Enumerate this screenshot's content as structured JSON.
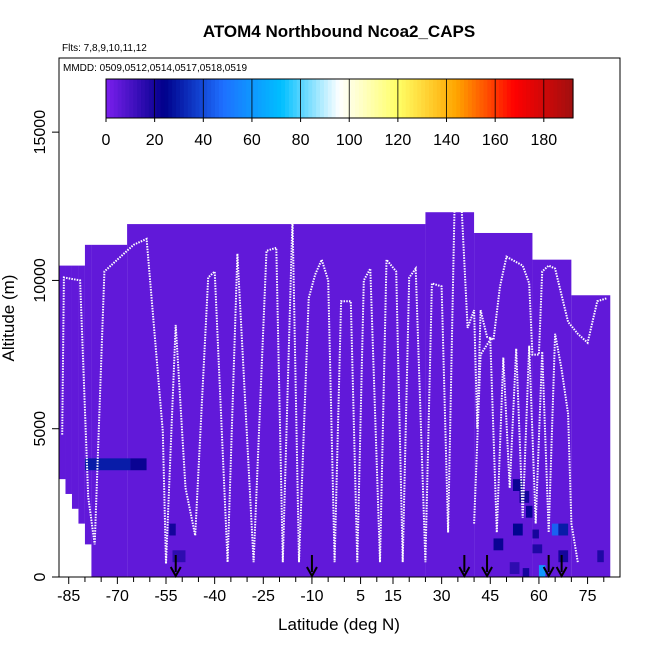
{
  "chart_data": {
    "type": "heatmap",
    "title": "ATOM4 Northbound Ncoa2_CAPS",
    "annotations": [
      "Flts: 7,8,9,10,11,12",
      "MMDD: 0509,0512,0514,0517,0518,0519"
    ],
    "xlabel": "Latitude (deg N)",
    "ylabel": "Altitude (m)",
    "xlim": [
      -88,
      85
    ],
    "ylim": [
      0,
      17500
    ],
    "x_ticks": [
      -85,
      -70,
      -55,
      -40,
      -25,
      -10,
      5,
      15,
      30,
      45,
      60,
      75
    ],
    "x_tick_labels": [
      "-85",
      "-70",
      "-55",
      "-40",
      "-25",
      "-10",
      "5",
      "15",
      "30",
      "45",
      "60",
      "75"
    ],
    "y_ticks": [
      0,
      5000,
      10000,
      15000
    ],
    "y_tick_labels": [
      "0",
      "5000",
      "10000",
      "15000"
    ],
    "colorbar": {
      "range": [
        0,
        192
      ],
      "ticks": [
        0,
        20,
        40,
        60,
        80,
        100,
        120,
        140,
        160,
        180
      ],
      "tick_labels": [
        "0",
        "20",
        "40",
        "60",
        "80",
        "100",
        "120",
        "140",
        "160",
        "180"
      ],
      "colors": [
        "#7b1fee",
        "#00008b",
        "#1e6fff",
        "#00bfff",
        "#ffffff",
        "#ffff66",
        "#ffa500",
        "#ff0000",
        "#a01010"
      ]
    },
    "background_value": 5,
    "coverage": [
      {
        "x": [
          -88,
          -80
        ],
        "top": 10500
      },
      {
        "x": [
          -80,
          -67
        ],
        "top": 11200
      },
      {
        "x": [
          -67,
          25
        ],
        "top": 11900
      },
      {
        "x": [
          25,
          40
        ],
        "top": 12300
      },
      {
        "x": [
          40,
          58
        ],
        "top": 11600
      },
      {
        "x": [
          58,
          70
        ],
        "top": 10700
      },
      {
        "x": [
          70,
          82
        ],
        "top": 9500
      }
    ],
    "coverage_bottom": [
      {
        "x": [
          -88,
          -86
        ],
        "bottom": 3300
      },
      {
        "x": [
          -86,
          -84
        ],
        "bottom": 2800
      },
      {
        "x": [
          -84,
          -82
        ],
        "bottom": 2300
      },
      {
        "x": [
          -82,
          -80
        ],
        "bottom": 1800
      },
      {
        "x": [
          -80,
          -78
        ],
        "bottom": 1100
      },
      {
        "x": [
          -78,
          82
        ],
        "bottom": 0
      }
    ],
    "cells": [
      {
        "x": [
          -80,
          -66
        ],
        "y": [
          3600,
          4000
        ],
        "value": 30
      },
      {
        "x": [
          -66,
          -61
        ],
        "y": [
          3600,
          4000
        ],
        "value": 22
      },
      {
        "x": [
          -54,
          -52
        ],
        "y": [
          1400,
          1800
        ],
        "value": 20
      },
      {
        "x": [
          -53,
          -49
        ],
        "y": [
          500,
          900
        ],
        "value": 15
      },
      {
        "x": [
          52,
          55
        ],
        "y": [
          2900,
          3300
        ],
        "value": 22
      },
      {
        "x": [
          54,
          57
        ],
        "y": [
          2500,
          2900
        ],
        "value": 20
      },
      {
        "x": [
          56,
          58
        ],
        "y": [
          2000,
          2400
        ],
        "value": 22
      },
      {
        "x": [
          52,
          55
        ],
        "y": [
          1400,
          1800
        ],
        "value": 25
      },
      {
        "x": [
          58,
          60
        ],
        "y": [
          1300,
          1600
        ],
        "value": 20
      },
      {
        "x": [
          46,
          49
        ],
        "y": [
          900,
          1300
        ],
        "value": 22
      },
      {
        "x": [
          58,
          61
        ],
        "y": [
          800,
          1100
        ],
        "value": 18
      },
      {
        "x": [
          64,
          66
        ],
        "y": [
          1400,
          1800
        ],
        "value": 45
      },
      {
        "x": [
          66,
          69
        ],
        "y": [
          1400,
          1800
        ],
        "value": 30
      },
      {
        "x": [
          66,
          69
        ],
        "y": [
          500,
          900
        ],
        "value": 20
      },
      {
        "x": [
          78,
          80
        ],
        "y": [
          500,
          900
        ],
        "value": 18
      },
      {
        "x": [
          51,
          54
        ],
        "y": [
          100,
          500
        ],
        "value": 15
      },
      {
        "x": [
          60,
          62
        ],
        "y": [
          0,
          400
        ],
        "value": 60
      },
      {
        "x": [
          55,
          57
        ],
        "y": [
          0,
          300
        ],
        "value": 20
      }
    ],
    "flight_tracks": [
      {
        "name": "",
        "points": [
          [
            -87,
            4800
          ],
          [
            -86.5,
            10100
          ],
          [
            -81.5,
            10000
          ],
          [
            -79,
            2700
          ],
          [
            -77,
            1100
          ],
          [
            -74,
            10300
          ],
          [
            -65,
            11200
          ],
          [
            -61,
            11400
          ],
          [
            -56,
            4900
          ],
          [
            -55,
            450
          ],
          [
            -52,
            8500
          ],
          [
            -49,
            3000
          ],
          [
            -46,
            1400
          ],
          [
            -42,
            10100
          ],
          [
            -40,
            10300
          ],
          [
            -36,
            500
          ],
          [
            -33,
            10900
          ],
          [
            -28,
            500
          ],
          [
            -24,
            11000
          ],
          [
            -21,
            11100
          ],
          [
            -19,
            500
          ],
          [
            -16,
            12100
          ],
          [
            -14,
            500
          ],
          [
            -11,
            9400
          ],
          [
            -9,
            10200
          ],
          [
            -7,
            10700
          ],
          [
            -5,
            10000
          ],
          [
            -3,
            500
          ],
          [
            -1,
            9300
          ],
          [
            2,
            9300
          ],
          [
            4,
            500
          ],
          [
            6,
            10000
          ],
          [
            8,
            10400
          ],
          [
            11,
            500
          ],
          [
            13,
            10700
          ],
          [
            16,
            10300
          ],
          [
            18,
            500
          ],
          [
            20,
            10100
          ],
          [
            22,
            10400
          ],
          [
            25,
            500
          ],
          [
            27,
            9900
          ],
          [
            30,
            9800
          ],
          [
            32,
            1500
          ],
          [
            34,
            12600
          ],
          [
            36,
            12800
          ],
          [
            38,
            8400
          ],
          [
            40,
            9000
          ],
          [
            41,
            5000
          ],
          [
            42,
            9000
          ],
          [
            44,
            8100
          ],
          [
            46,
            8000
          ],
          [
            48,
            9800
          ],
          [
            50,
            10800
          ],
          [
            55,
            10500
          ],
          [
            57,
            9900
          ],
          [
            58,
            7500
          ],
          [
            60,
            7500
          ],
          [
            61,
            10300
          ],
          [
            63,
            10500
          ],
          [
            65,
            10400
          ],
          [
            67,
            9500
          ],
          [
            69,
            8600
          ],
          [
            72,
            8200
          ],
          [
            75,
            7900
          ],
          [
            78,
            9300
          ],
          [
            81,
            9400
          ]
        ]
      },
      {
        "name": "",
        "points": [
          [
            40,
            1800
          ],
          [
            42,
            7500
          ],
          [
            45,
            8000
          ],
          [
            47,
            1500
          ],
          [
            49,
            7400
          ],
          [
            51,
            3000
          ],
          [
            53,
            7700
          ],
          [
            55,
            2000
          ],
          [
            57,
            7800
          ],
          [
            59,
            1800
          ],
          [
            61,
            7600
          ],
          [
            63,
            1500
          ],
          [
            65,
            8200
          ],
          [
            67,
            7000
          ],
          [
            69,
            5500
          ],
          [
            70,
            1800
          ],
          [
            72,
            500
          ]
        ]
      }
    ],
    "arrows_x": [
      -52,
      -10,
      37,
      44,
      63,
      67
    ]
  }
}
